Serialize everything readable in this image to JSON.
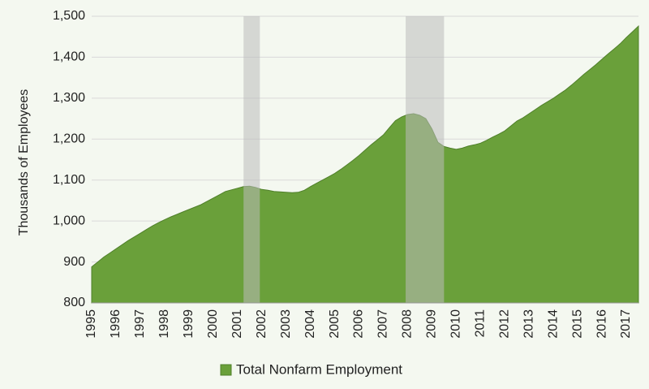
{
  "chart_data": {
    "type": "area",
    "y_label": "Thousands of Employees",
    "categories": [
      "1995",
      null,
      null,
      null,
      "1996",
      null,
      null,
      null,
      "1997",
      null,
      null,
      null,
      "1998",
      null,
      null,
      null,
      "1999",
      null,
      null,
      null,
      "2000",
      null,
      null,
      null,
      "2001",
      null,
      null,
      null,
      "2002",
      null,
      null,
      null,
      "2003",
      null,
      null,
      null,
      "2004",
      null,
      null,
      null,
      "2005",
      null,
      null,
      null,
      "2006",
      null,
      null,
      null,
      "2007",
      null,
      null,
      null,
      "2008",
      null,
      null,
      null,
      "2009",
      null,
      null,
      null,
      "2010",
      null,
      null,
      null,
      "2011",
      null,
      null,
      null,
      "2012",
      null,
      null,
      null,
      "2013",
      null,
      null,
      null,
      "2014",
      null,
      null,
      null,
      "2015",
      null,
      null,
      null,
      "2016",
      null,
      null,
      null,
      "2017",
      null,
      null
    ],
    "series": [
      {
        "name": "Total Nonfarm Employment",
        "color": "#6aa03a",
        "values": [
          888,
          900,
          912,
          922,
          932,
          942,
          952,
          961,
          970,
          979,
          988,
          996,
          1003,
          1010,
          1016,
          1022,
          1028,
          1034,
          1040,
          1048,
          1056,
          1064,
          1072,
          1076,
          1080,
          1084,
          1085,
          1082,
          1077,
          1075,
          1072,
          1071,
          1070,
          1069,
          1070,
          1075,
          1084,
          1092,
          1100,
          1108,
          1116,
          1126,
          1137,
          1148,
          1160,
          1173,
          1186,
          1198,
          1210,
          1228,
          1245,
          1254,
          1260,
          1262,
          1258,
          1250,
          1225,
          1192,
          1182,
          1178,
          1175,
          1178,
          1183,
          1186,
          1190,
          1197,
          1205,
          1212,
          1220,
          1232,
          1244,
          1252,
          1262,
          1272,
          1282,
          1291,
          1300,
          1310,
          1320,
          1332,
          1345,
          1358,
          1370,
          1382,
          1395,
          1408,
          1420,
          1433,
          1448,
          1462,
          1476
        ]
      }
    ],
    "shaded_periods": [
      [
        2001.25,
        2001.92
      ],
      [
        2007.92,
        2009.5
      ]
    ],
    "shade_color": "#bbbbbb",
    "ylim": [
      800,
      1500
    ],
    "yticks": [
      800,
      900,
      {
        "value": 1000,
        "label": "1,000"
      },
      {
        "value": 1100,
        "label": "1,100"
      },
      {
        "value": 1200,
        "label": "1,200"
      },
      {
        "value": 1300,
        "label": "1,300"
      },
      {
        "value": 1400,
        "label": "1,400"
      },
      {
        "value": 1500,
        "label": "1,500"
      }
    ],
    "grid": true,
    "legend": "bottom"
  }
}
